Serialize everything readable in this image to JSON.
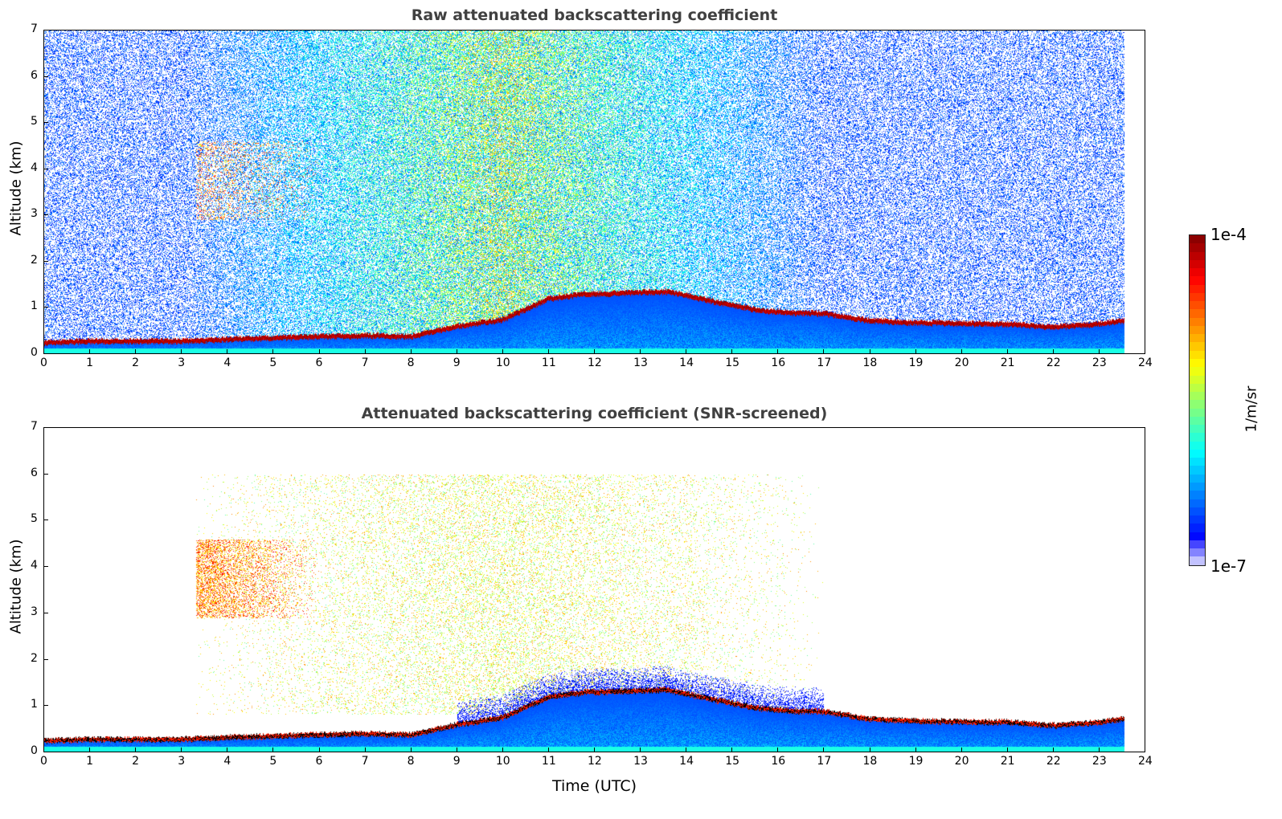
{
  "chart_data": [
    {
      "type": "heatmap",
      "title": "Raw attenuated backscattering coefficient",
      "xlabel": "Time (UTC)",
      "ylabel": "Altitude (km)",
      "xlim": [
        0,
        24
      ],
      "ylim": [
        0,
        7
      ],
      "xticks": [
        0,
        1,
        2,
        3,
        4,
        5,
        6,
        7,
        8,
        9,
        10,
        11,
        12,
        13,
        14,
        15,
        16,
        17,
        18,
        19,
        20,
        21,
        22,
        23,
        24
      ],
      "yticks": [
        0,
        1,
        2,
        3,
        4,
        5,
        6,
        7
      ],
      "data_end_time": 23.55,
      "boundary_layer": {
        "time": [
          0,
          1,
          2,
          3,
          4,
          5,
          6,
          7,
          8,
          9,
          10,
          11,
          11.8,
          13.6,
          14.8,
          15.6,
          16.2,
          17,
          18,
          19,
          20,
          21,
          22,
          23,
          23.5
        ],
        "altitude_km": [
          0.25,
          0.28,
          0.28,
          0.28,
          0.32,
          0.35,
          0.38,
          0.4,
          0.38,
          0.6,
          0.75,
          1.2,
          1.3,
          1.35,
          1.1,
          0.95,
          0.9,
          0.88,
          0.72,
          0.68,
          0.66,
          0.65,
          0.58,
          0.65,
          0.72
        ]
      },
      "aerosol_layer": {
        "time": [
          3.3,
          6.0
        ],
        "altitude_km": [
          2.9,
          4.6
        ]
      }
    },
    {
      "type": "heatmap",
      "title": "Attenuated backscattering coefficient (SNR-screened)",
      "xlabel": "Time (UTC)",
      "ylabel": "Altitude (km)",
      "xlim": [
        0,
        24
      ],
      "ylim": [
        0,
        7
      ],
      "xticks": [
        0,
        1,
        2,
        3,
        4,
        5,
        6,
        7,
        8,
        9,
        10,
        11,
        12,
        13,
        14,
        15,
        16,
        17,
        18,
        19,
        20,
        21,
        22,
        23,
        24
      ],
      "yticks": [
        0,
        1,
        2,
        3,
        4,
        5,
        6,
        7
      ]
    }
  ],
  "colorbar": {
    "label": "1/m/sr",
    "max_label": "1e-4",
    "min_label": "1e-7",
    "min": 1e-07,
    "max": 0.0001,
    "colormap": "jet"
  }
}
